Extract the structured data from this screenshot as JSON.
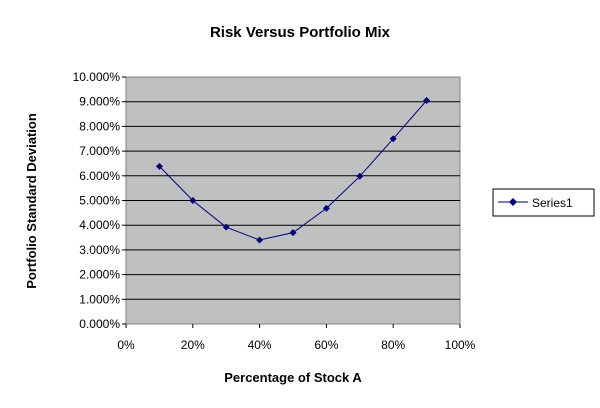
{
  "chart_data": {
    "type": "line",
    "title": "Risk Versus Portfolio Mix",
    "xlabel": "Percentage of Stock A",
    "ylabel": "Portfolio Standard Deviation",
    "xlim": [
      0,
      100
    ],
    "ylim": [
      0,
      10
    ],
    "x_ticks": [
      "0%",
      "20%",
      "40%",
      "60%",
      "80%",
      "100%"
    ],
    "y_ticks": [
      "0.000%",
      "1.000%",
      "2.000%",
      "3.000%",
      "4.000%",
      "5.000%",
      "6.000%",
      "7.000%",
      "8.000%",
      "9.000%",
      "10.000%"
    ],
    "grid": "horizontal",
    "legend": "right",
    "plot_background": "#c0c0c0",
    "series": [
      {
        "name": "Series1",
        "color": "#000080",
        "marker": "diamond",
        "x": [
          10,
          20,
          30,
          40,
          50,
          60,
          70,
          80,
          90
        ],
        "values": [
          6.38,
          5.0,
          3.92,
          3.4,
          3.7,
          4.68,
          5.98,
          7.5,
          9.05
        ]
      }
    ]
  }
}
